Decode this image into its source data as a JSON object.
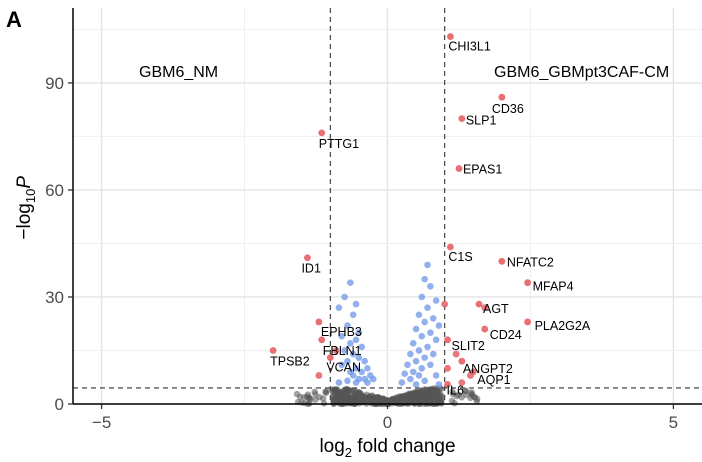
{
  "panel_label": "A",
  "chart_data": {
    "type": "scatter",
    "title": "",
    "xlabel": "log2 fold change",
    "ylabel": "-log10 P",
    "xlim": [
      -5.5,
      5.5
    ],
    "ylim": [
      0,
      111
    ],
    "xticks": [
      -5,
      0,
      5
    ],
    "xtick_labels": [
      "−5",
      "0",
      "5"
    ],
    "yticks": [
      0,
      30,
      60,
      90
    ],
    "ytick_labels": [
      "0",
      "30",
      "60",
      "90"
    ],
    "grid": true,
    "thresholds": {
      "fold_change": [
        -1,
        1
      ],
      "p": 4.5
    },
    "group_labels": {
      "left": "GBM6_NM",
      "right": "GBM6_GBMpt3CAF-CM"
    },
    "colors": {
      "significant": "#e8676e",
      "p_only": "#6f95e8",
      "not_significant": "#555555",
      "label_highlight": "#1a8f1a"
    },
    "labeled_points": [
      {
        "gene": "CHI3L1",
        "x": 1.1,
        "y": 103
      },
      {
        "gene": "CD36",
        "x": 2.0,
        "y": 86
      },
      {
        "gene": "SLP1",
        "x": 1.3,
        "y": 80
      },
      {
        "gene": "PTTG1",
        "x": -1.15,
        "y": 76
      },
      {
        "gene": "EPAS1",
        "x": 1.25,
        "y": 66
      },
      {
        "gene": "C1S",
        "x": 1.1,
        "y": 44
      },
      {
        "gene": "NFATC2",
        "x": 2.0,
        "y": 40
      },
      {
        "gene": "ID1",
        "x": -1.4,
        "y": 41
      },
      {
        "gene": "MFAP4",
        "x": 2.45,
        "y": 34
      },
      {
        "gene": "AGT",
        "x": 1.6,
        "y": 28
      },
      {
        "gene": "PLA2G2A",
        "x": 2.45,
        "y": 23
      },
      {
        "gene": "CD24",
        "x": 1.7,
        "y": 21
      },
      {
        "gene": "EPHB3",
        "x": -1.2,
        "y": 23
      },
      {
        "gene": "FBLN1",
        "x": -1.15,
        "y": 18
      },
      {
        "gene": "TPSB2",
        "x": -2.0,
        "y": 15
      },
      {
        "gene": "SLIT2",
        "x": 1.05,
        "y": 18
      },
      {
        "gene": "VCAN",
        "x": -1.0,
        "y": 13
      },
      {
        "gene": "ANGPT2",
        "x": 1.3,
        "y": 12
      },
      {
        "gene": "AQP1",
        "x": 1.5,
        "y": 9
      },
      {
        "gene": "IL6",
        "x": 1.05,
        "y": 5.5
      }
    ],
    "other_significant_points": [
      {
        "x": 1.0,
        "y": 28
      },
      {
        "x": 1.7,
        "y": 27
      },
      {
        "x": -0.9,
        "y": 15
      },
      {
        "x": 1.05,
        "y": 10
      },
      {
        "x": 1.45,
        "y": 8
      },
      {
        "x": 1.3,
        "y": 6
      },
      {
        "x": -1.2,
        "y": 8
      },
      {
        "x": 1.2,
        "y": 14
      }
    ],
    "p_only_points": [
      {
        "x": -0.65,
        "y": 34
      },
      {
        "x": -0.75,
        "y": 30
      },
      {
        "x": -0.55,
        "y": 28
      },
      {
        "x": -0.85,
        "y": 27
      },
      {
        "x": -0.6,
        "y": 25
      },
      {
        "x": -0.7,
        "y": 22
      },
      {
        "x": -0.5,
        "y": 20
      },
      {
        "x": -0.8,
        "y": 19
      },
      {
        "x": -0.55,
        "y": 18
      },
      {
        "x": -0.65,
        "y": 17
      },
      {
        "x": -0.45,
        "y": 16
      },
      {
        "x": -0.75,
        "y": 15
      },
      {
        "x": -0.6,
        "y": 14
      },
      {
        "x": -0.5,
        "y": 13
      },
      {
        "x": -0.7,
        "y": 12
      },
      {
        "x": -0.4,
        "y": 12
      },
      {
        "x": -0.8,
        "y": 11
      },
      {
        "x": -0.55,
        "y": 10
      },
      {
        "x": -0.35,
        "y": 10
      },
      {
        "x": -0.65,
        "y": 9
      },
      {
        "x": -0.45,
        "y": 9
      },
      {
        "x": -0.3,
        "y": 8
      },
      {
        "x": -0.6,
        "y": 8
      },
      {
        "x": -0.5,
        "y": 7
      },
      {
        "x": -0.4,
        "y": 7
      },
      {
        "x": -0.25,
        "y": 7
      },
      {
        "x": -0.7,
        "y": 6.5
      },
      {
        "x": -0.55,
        "y": 6
      },
      {
        "x": -0.35,
        "y": 6
      },
      {
        "x": -0.85,
        "y": 6
      },
      {
        "x": 0.7,
        "y": 39
      },
      {
        "x": 0.65,
        "y": 35
      },
      {
        "x": 0.75,
        "y": 33
      },
      {
        "x": 0.6,
        "y": 30
      },
      {
        "x": 0.85,
        "y": 29
      },
      {
        "x": 0.7,
        "y": 27
      },
      {
        "x": 0.55,
        "y": 25
      },
      {
        "x": 0.8,
        "y": 24
      },
      {
        "x": 0.65,
        "y": 23
      },
      {
        "x": 0.9,
        "y": 22
      },
      {
        "x": 0.5,
        "y": 21
      },
      {
        "x": 0.75,
        "y": 20
      },
      {
        "x": 0.6,
        "y": 19
      },
      {
        "x": 0.85,
        "y": 18
      },
      {
        "x": 0.45,
        "y": 17
      },
      {
        "x": 0.7,
        "y": 16
      },
      {
        "x": 0.55,
        "y": 15
      },
      {
        "x": 0.8,
        "y": 14
      },
      {
        "x": 0.4,
        "y": 14
      },
      {
        "x": 0.65,
        "y": 13
      },
      {
        "x": 0.5,
        "y": 12
      },
      {
        "x": 0.75,
        "y": 11
      },
      {
        "x": 0.35,
        "y": 11
      },
      {
        "x": 0.6,
        "y": 10
      },
      {
        "x": 0.45,
        "y": 9
      },
      {
        "x": 0.3,
        "y": 8.5
      },
      {
        "x": 0.55,
        "y": 8
      },
      {
        "x": 0.85,
        "y": 8
      },
      {
        "x": 0.4,
        "y": 7
      },
      {
        "x": 0.65,
        "y": 6.5
      },
      {
        "x": 0.25,
        "y": 6
      },
      {
        "x": 0.5,
        "y": 5.5
      },
      {
        "x": 0.9,
        "y": 5.5
      }
    ]
  }
}
